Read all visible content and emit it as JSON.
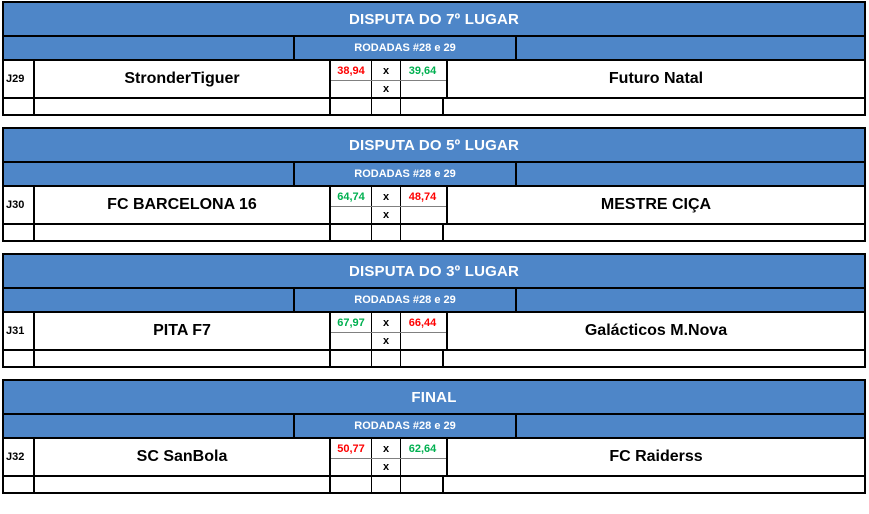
{
  "colors": {
    "header_blue": "#4e86c8",
    "win_green": "#00b050",
    "loss_red": "#fe0000"
  },
  "tables": [
    {
      "title": "DISPUTA DO 7º LUGAR",
      "rounds_label": "RODADAS #28 e 29",
      "match": {
        "id": "J29",
        "home_team": "StronderTiguer",
        "away_team": "Futuro Natal",
        "home_score": "38,94",
        "away_score": "39,64",
        "home_score_color": "#fe0000",
        "away_score_color": "#00b050",
        "separator": "x"
      }
    },
    {
      "title": "DISPUTA DO 5º LUGAR",
      "rounds_label": "RODADAS #28 e 29",
      "match": {
        "id": "J30",
        "home_team": "FC BARCELONA 16",
        "away_team": "MESTRE CIÇA",
        "home_score": "64,74",
        "away_score": "48,74",
        "home_score_color": "#00b050",
        "away_score_color": "#fe0000",
        "separator": "x"
      }
    },
    {
      "title": "DISPUTA DO 3º LUGAR",
      "rounds_label": "RODADAS #28 e 29",
      "match": {
        "id": "J31",
        "home_team": "PITA F7",
        "away_team": "Galácticos M.Nova",
        "home_score": "67,97",
        "away_score": "66,44",
        "home_score_color": "#00b050",
        "away_score_color": "#fe0000",
        "separator": "x"
      }
    },
    {
      "title": "FINAL",
      "rounds_label": "RODADAS #28 e 29",
      "match": {
        "id": "J32",
        "home_team": "SC SanBola",
        "away_team": "FC Raiderss",
        "home_score": "50,77",
        "away_score": "62,64",
        "home_score_color": "#fe0000",
        "away_score_color": "#00b050",
        "separator": "x"
      }
    }
  ]
}
